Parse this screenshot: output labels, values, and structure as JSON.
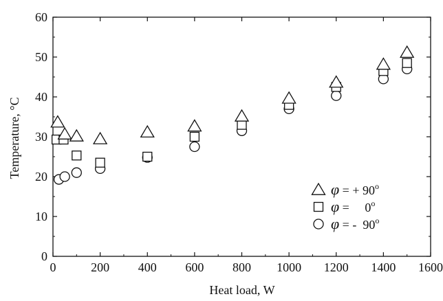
{
  "chart_data": {
    "type": "scatter",
    "title": "",
    "xlabel": "Heat load, W",
    "ylabel": "Temperature, °C",
    "xlim": [
      0,
      1600
    ],
    "ylim": [
      0,
      60
    ],
    "x_ticks": [
      "0",
      "200",
      "400",
      "600",
      "800",
      "1000",
      "1200",
      "1400",
      "1600"
    ],
    "y_ticks": [
      "0",
      "10",
      "20",
      "30",
      "40",
      "50",
      "60"
    ],
    "grid": false,
    "legend_position": "bottom-right",
    "series": [
      {
        "name": "φ = + 90°",
        "marker": "triangle",
        "legend_var": "φ",
        "legend_mid": " = + 90",
        "legend_sup": "o",
        "points": [
          [
            20,
            33.5
          ],
          [
            50,
            30.5
          ],
          [
            100,
            30
          ],
          [
            200,
            29.3
          ],
          [
            400,
            31
          ],
          [
            600,
            32.5
          ],
          [
            800,
            35
          ],
          [
            1000,
            39.5
          ],
          [
            1200,
            43.5
          ],
          [
            1400,
            48
          ],
          [
            1500,
            51
          ]
        ]
      },
      {
        "name": "φ = 0°",
        "marker": "square",
        "legend_var": "φ",
        "legend_mid": " =     0",
        "legend_sup": "o",
        "points": [
          [
            15,
            29.3
          ],
          [
            45,
            29.3
          ],
          [
            100,
            25.3
          ],
          [
            200,
            23.5
          ],
          [
            400,
            25
          ],
          [
            600,
            30
          ],
          [
            800,
            33
          ],
          [
            1000,
            38
          ],
          [
            1200,
            42.5
          ],
          [
            1400,
            46.5
          ],
          [
            1500,
            48.5
          ]
        ]
      },
      {
        "name": "φ = - 90°",
        "marker": "circle",
        "legend_var": "φ",
        "legend_mid": " = -  90",
        "legend_sup": "o",
        "points": [
          [
            25,
            19.3
          ],
          [
            50,
            20
          ],
          [
            100,
            21
          ],
          [
            200,
            22
          ],
          [
            400,
            24.8
          ],
          [
            600,
            27.5
          ],
          [
            800,
            31.5
          ],
          [
            1000,
            37
          ],
          [
            1200,
            40.3
          ],
          [
            1400,
            44.5
          ],
          [
            1500,
            47
          ]
        ]
      }
    ]
  }
}
